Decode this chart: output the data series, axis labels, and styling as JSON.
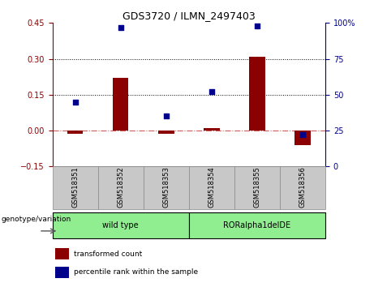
{
  "title": "GDS3720 / ILMN_2497403",
  "samples": [
    "GSM518351",
    "GSM518352",
    "GSM518353",
    "GSM518354",
    "GSM518355",
    "GSM518356"
  ],
  "red_bars": [
    -0.012,
    0.22,
    -0.012,
    0.01,
    0.31,
    -0.062
  ],
  "blue_dots": [
    45,
    97,
    35,
    52,
    98,
    22
  ],
  "left_ylim": [
    -0.15,
    0.45
  ],
  "right_ylim": [
    0,
    100
  ],
  "left_yticks": [
    -0.15,
    0,
    0.15,
    0.3,
    0.45
  ],
  "right_yticks": [
    0,
    25,
    50,
    75,
    100
  ],
  "hlines": [
    0.15,
    0.3
  ],
  "bar_color": "#8B0000",
  "dot_color": "#00008B",
  "zero_line_color": "#CD5C5C",
  "label_bar": "transformed count",
  "label_dot": "percentile rank within the sample",
  "genotype_label": "genotype/variation",
  "group1_label": "wild type",
  "group2_label": "RORalpha1delDE",
  "group_color": "#90EE90",
  "tick_bg_color": "#C8C8C8",
  "tick_border_color": "#888888",
  "title_fontsize": 9,
  "tick_label_fontsize": 6,
  "group_fontsize": 7,
  "legend_fontsize": 6.5,
  "genotype_fontsize": 6.5,
  "bar_width": 0.35
}
